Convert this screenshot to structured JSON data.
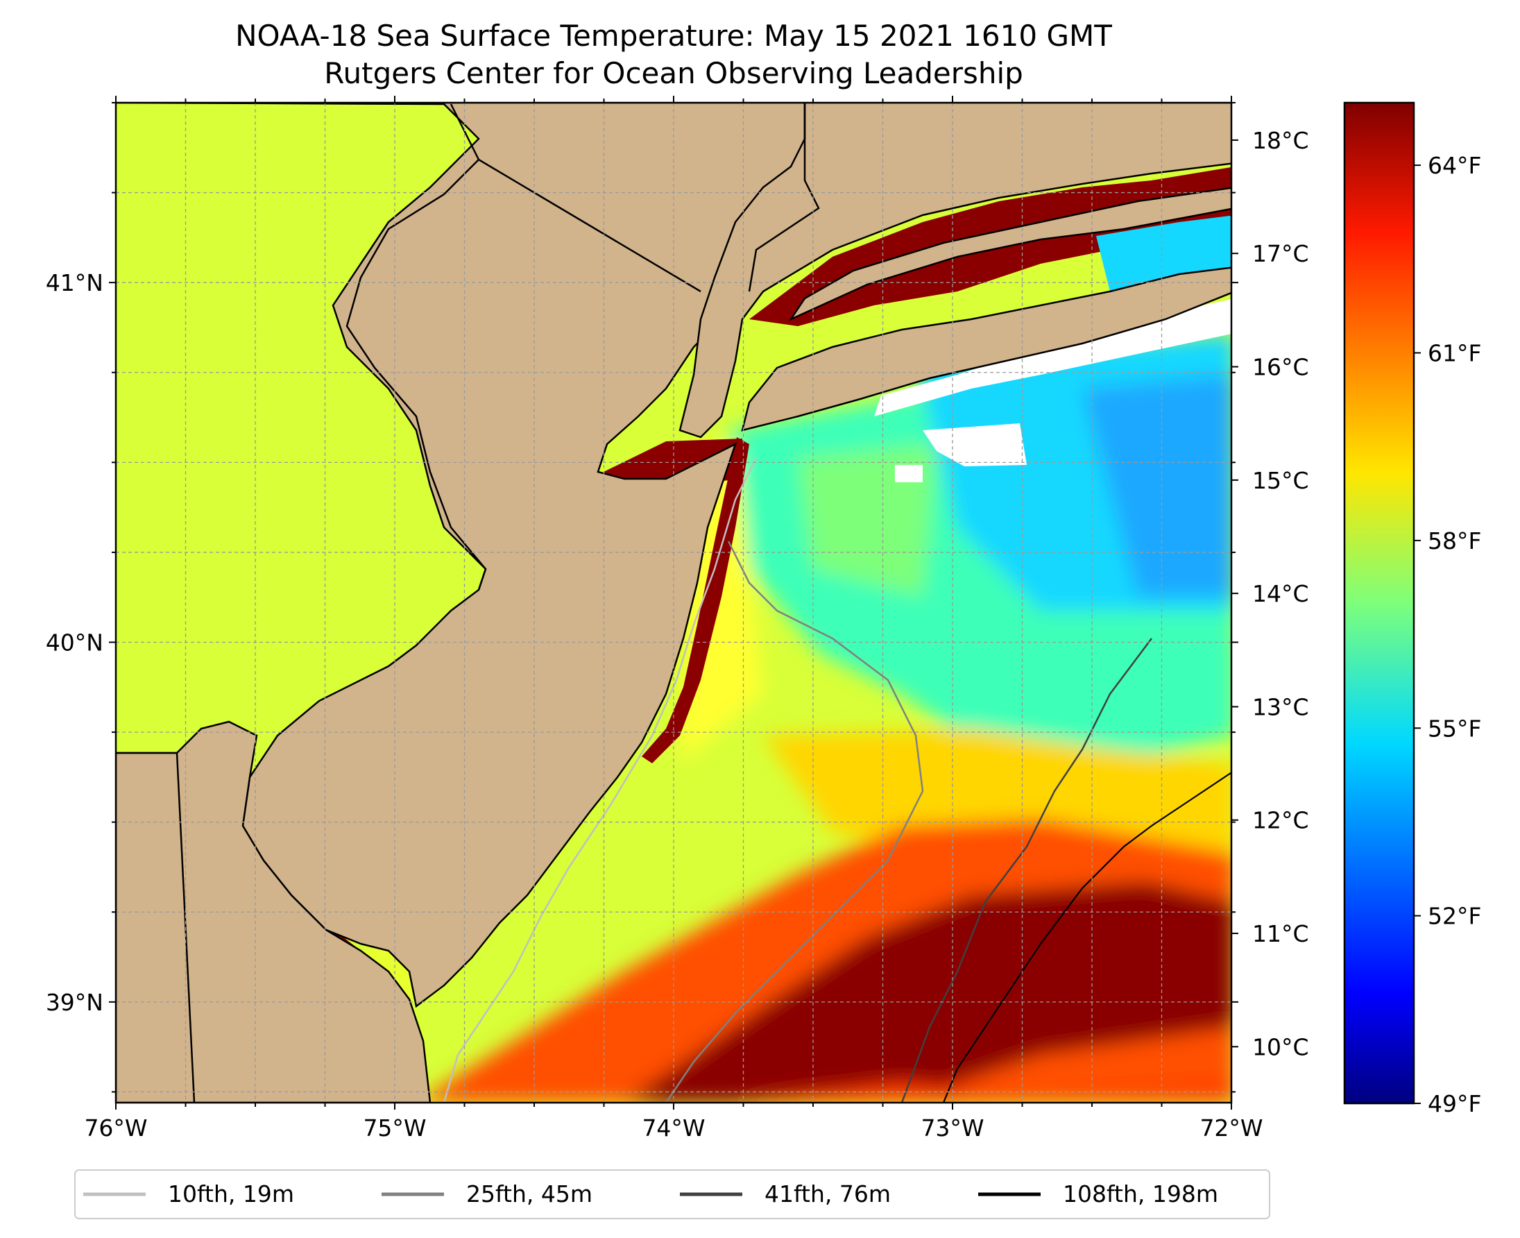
{
  "title": {
    "line1": "NOAA-18 Sea Surface Temperature: May 15 2021 1610 GMT",
    "line2": "Rutgers Center for Ocean Observing Leadership"
  },
  "map": {
    "lon_range": [
      -76,
      -72
    ],
    "lat_range": [
      38.72,
      41.5
    ],
    "x_ticks": [
      {
        "lon": -76,
        "label": "76°W"
      },
      {
        "lon": -75,
        "label": "75°W"
      },
      {
        "lon": -74,
        "label": "74°W"
      },
      {
        "lon": -73,
        "label": "73°W"
      },
      {
        "lon": -72,
        "label": "72°W"
      }
    ],
    "y_ticks": [
      {
        "lat": 41,
        "label": "41°N"
      },
      {
        "lat": 40,
        "label": "40°N"
      },
      {
        "lat": 39,
        "label": "39°N"
      }
    ],
    "gridlines": true,
    "land_color": "#D2B48C",
    "no_data_color": "#ffffff"
  },
  "colorbar": {
    "colormap": "jet",
    "celsius_ticks": [
      {
        "value": 18,
        "label": "18°C"
      },
      {
        "value": 17,
        "label": "17°C"
      },
      {
        "value": 16,
        "label": "16°C"
      },
      {
        "value": 15,
        "label": "15°C"
      },
      {
        "value": 14,
        "label": "14°C"
      },
      {
        "value": 13,
        "label": "13°C"
      },
      {
        "value": 12,
        "label": "12°C"
      },
      {
        "value": 11,
        "label": "11°C"
      },
      {
        "value": 10,
        "label": "10°C"
      }
    ],
    "fahrenheit_ticks": [
      {
        "value": 64,
        "label": "64°F"
      },
      {
        "value": 61,
        "label": "61°F"
      },
      {
        "value": 58,
        "label": "58°F"
      },
      {
        "value": 55,
        "label": "55°F"
      },
      {
        "value": 52,
        "label": "52°F"
      },
      {
        "value": 49,
        "label": "49°F"
      }
    ],
    "range_f": [
      49,
      65
    ],
    "range_c": [
      9.5,
      18.33
    ]
  },
  "legend": {
    "items": [
      {
        "label": "10fth, 19m",
        "color": "#c0c0c0"
      },
      {
        "label": "25fth, 45m",
        "color": "#808080"
      },
      {
        "label": "41fth, 76m",
        "color": "#404040"
      },
      {
        "label": "108fth, 198m",
        "color": "#000000"
      }
    ]
  }
}
